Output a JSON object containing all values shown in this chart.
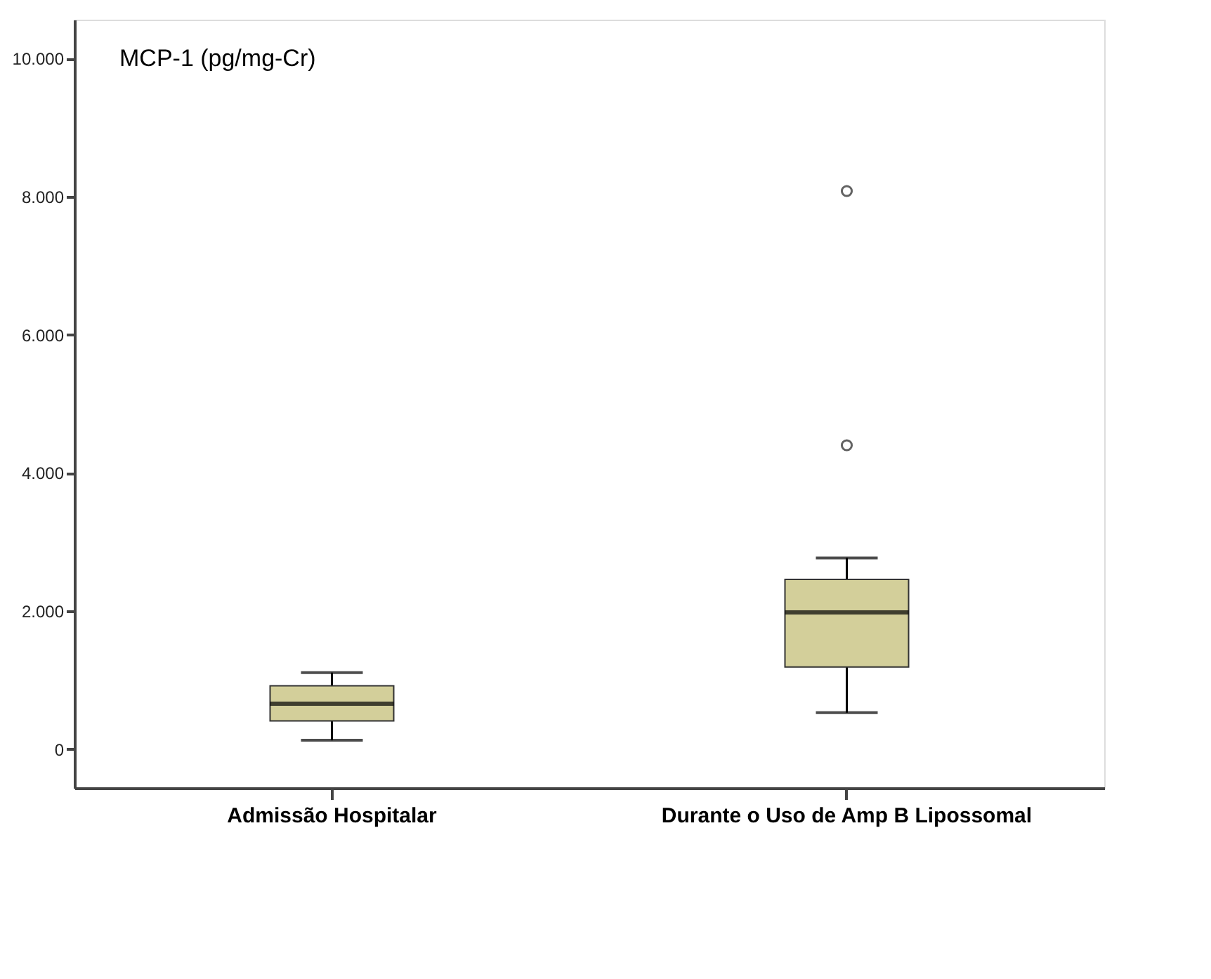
{
  "chart_data": {
    "type": "box",
    "title": "MCP-1 (pg/mg-Cr)",
    "categories": [
      "Admissão Hospitalar",
      "Durante o Uso de Amp B Lipossomal"
    ],
    "series": [
      {
        "color": "#d3cf9a",
        "boxes": [
          {
            "low": 130,
            "q1": 410,
            "median": 660,
            "q3": 920,
            "high": 1110
          },
          {
            "low": 530,
            "q1": 1190,
            "median": 1980,
            "q3": 2460,
            "high": 2770,
            "outliers": [
              4400,
              8080
            ]
          }
        ]
      }
    ],
    "ylim": [
      -560,
      10560
    ],
    "yticks": [
      0,
      {
        "value": 2000,
        "label": "2.000"
      },
      {
        "value": 4000,
        "label": "4.000"
      },
      {
        "value": 6000,
        "label": "6.000"
      },
      {
        "value": 8000,
        "label": "8.000"
      },
      {
        "value": 10000,
        "label": "10.000"
      }
    ],
    "grid": false
  }
}
